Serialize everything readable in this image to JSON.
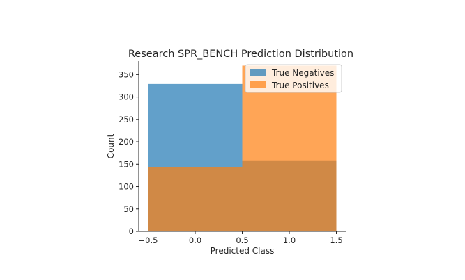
{
  "chart_data": {
    "type": "histogram",
    "title": "Research SPR_BENCH Prediction Distribution",
    "xlabel": "Predicted Class",
    "ylabel": "Count",
    "xlim": [
      -0.5,
      1.5
    ],
    "ylim": [
      0,
      380
    ],
    "xticks": [
      "−0.5",
      "0.0",
      "0.5",
      "1.0",
      "1.5"
    ],
    "xtick_values": [
      -0.5,
      0.0,
      0.5,
      1.0,
      1.5
    ],
    "yticks": [
      0,
      50,
      100,
      150,
      200,
      250,
      300,
      350
    ],
    "bin_edges": [
      -0.5,
      0.5,
      1.5
    ],
    "series": [
      {
        "name": "True Negatives",
        "color": "#1f77b4",
        "opacity": 0.7,
        "counts": [
          329,
          157
        ]
      },
      {
        "name": "True Positives",
        "color": "#ff7f0e",
        "opacity": 0.7,
        "counts": [
          143,
          370
        ]
      }
    ],
    "legend_position": "top-right",
    "grid": false
  }
}
